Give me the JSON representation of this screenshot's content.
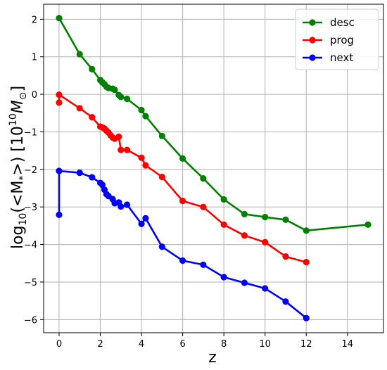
{
  "chart_data": {
    "type": "line",
    "title": "",
    "xlabel": "z",
    "ylabel": "log",
    "ylabel_sub": "10",
    "ylabel_inner": "(<M",
    "ylabel_star": "*",
    "ylabel_close": ">) [10",
    "ylabel_sup": "10",
    "ylabel_msun": "M",
    "ylabel_sun": "⊙",
    "ylabel_end": "]",
    "xlim": [
      -0.75,
      15.75
    ],
    "ylim": [
      -6.35,
      2.4
    ],
    "xticks": [
      0,
      2,
      4,
      6,
      8,
      10,
      12,
      14
    ],
    "xtick_labels": [
      "0",
      "2",
      "4",
      "6",
      "8",
      "10",
      "12",
      "14"
    ],
    "yticks": [
      2,
      1,
      0,
      -1,
      -2,
      -3,
      -4,
      -5,
      -6
    ],
    "ytick_labels": [
      "2",
      "1",
      "0",
      "−1",
      "−2",
      "−3",
      "−4",
      "−5",
      "−6"
    ],
    "grid": true,
    "legend_position": "top-right",
    "series": [
      {
        "name": "desc",
        "color": "#008000",
        "points": [
          [
            0,
            2.03
          ],
          [
            1,
            1.07
          ],
          [
            1.6,
            0.67
          ],
          [
            2,
            0.38
          ],
          [
            2.1,
            0.32
          ],
          [
            2.2,
            0.27
          ],
          [
            2.3,
            0.2
          ],
          [
            2.4,
            0.17
          ],
          [
            2.6,
            0.15
          ],
          [
            2.7,
            0.12
          ],
          [
            2.9,
            -0.02
          ],
          [
            3,
            -0.07
          ],
          [
            3.3,
            -0.12
          ],
          [
            4,
            -0.42
          ],
          [
            4.2,
            -0.58
          ],
          [
            5,
            -1.11
          ],
          [
            6,
            -1.71
          ],
          [
            7,
            -2.24
          ],
          [
            8,
            -2.8
          ],
          [
            9,
            -3.19
          ],
          [
            10,
            -3.27
          ],
          [
            11,
            -3.34
          ],
          [
            12,
            -3.63
          ],
          [
            15,
            -3.47
          ]
        ]
      },
      {
        "name": "prog",
        "color": "#ff0000",
        "points": [
          [
            0,
            -0.22
          ],
          [
            0,
            -0.01
          ],
          [
            1,
            -0.37
          ],
          [
            1.6,
            -0.61
          ],
          [
            2,
            -0.86
          ],
          [
            2.1,
            -0.88
          ],
          [
            2.2,
            -0.91
          ],
          [
            2.3,
            -0.97
          ],
          [
            2.4,
            -1.02
          ],
          [
            2.5,
            -1.09
          ],
          [
            2.6,
            -1.15
          ],
          [
            2.7,
            -1.18
          ],
          [
            2.9,
            -1.13
          ],
          [
            3,
            -1.48
          ],
          [
            3.3,
            -1.48
          ],
          [
            4,
            -1.69
          ],
          [
            4.2,
            -1.89
          ],
          [
            5,
            -2.2
          ],
          [
            6,
            -2.84
          ],
          [
            7,
            -3.0
          ],
          [
            8,
            -3.47
          ],
          [
            9,
            -3.76
          ],
          [
            10,
            -3.94
          ],
          [
            11,
            -4.32
          ],
          [
            12,
            -4.47
          ]
        ]
      },
      {
        "name": "next",
        "color": "#0000ff",
        "points": [
          [
            0,
            -3.21
          ],
          [
            0,
            -2.04
          ],
          [
            1,
            -2.09
          ],
          [
            1.6,
            -2.21
          ],
          [
            2,
            -2.36
          ],
          [
            2.1,
            -2.41
          ],
          [
            2.2,
            -2.54
          ],
          [
            2.3,
            -2.66
          ],
          [
            2.4,
            -2.71
          ],
          [
            2.6,
            -2.79
          ],
          [
            2.7,
            -2.9
          ],
          [
            2.9,
            -2.88
          ],
          [
            3,
            -2.99
          ],
          [
            3.3,
            -2.94
          ],
          [
            4,
            -3.45
          ],
          [
            4.2,
            -3.3
          ],
          [
            5,
            -4.06
          ],
          [
            6,
            -4.43
          ],
          [
            7,
            -4.54
          ],
          [
            8,
            -4.87
          ],
          [
            9,
            -5.02
          ],
          [
            10,
            -5.17
          ],
          [
            11,
            -5.52
          ],
          [
            12,
            -5.96
          ]
        ]
      }
    ]
  }
}
